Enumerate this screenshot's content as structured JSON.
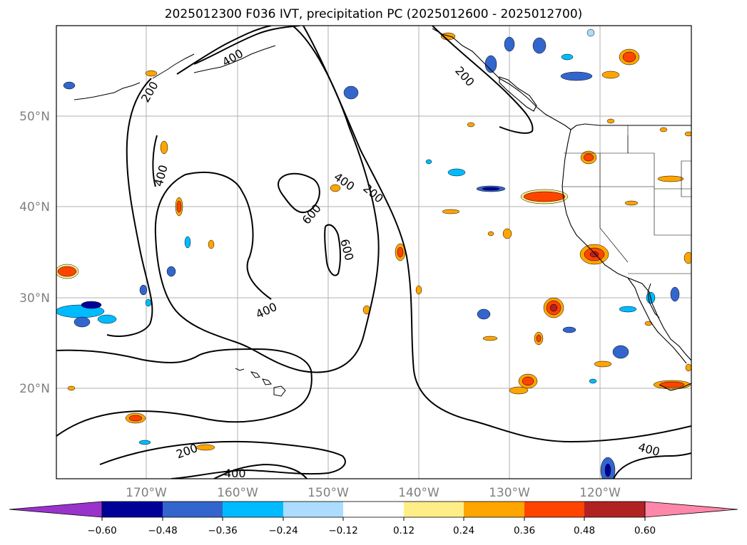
{
  "title": "2025012300 F036 IVT, precipitation PC (2025012600 - 2025012700)",
  "longitude_ticks": [
    "170°W",
    "160°W",
    "150°W",
    "140°W",
    "130°W",
    "120°W"
  ],
  "latitude_ticks": [
    "50°N",
    "40°N",
    "30°N",
    "20°N"
  ],
  "contour_labels": [
    "200",
    "400",
    "600"
  ],
  "colorbar": {
    "ticks": [
      "−0.60",
      "−0.48",
      "−0.36",
      "−0.24",
      "−0.12",
      "0.12",
      "0.24",
      "0.36",
      "0.48",
      "0.60"
    ],
    "colors": [
      "#9933cc",
      "#000099",
      "#3366cc",
      "#00bbff",
      "#aaddff",
      "#ffffff",
      "#ffee88",
      "#ffa500",
      "#ff4400",
      "#b22222",
      "#ff88aa"
    ]
  }
}
